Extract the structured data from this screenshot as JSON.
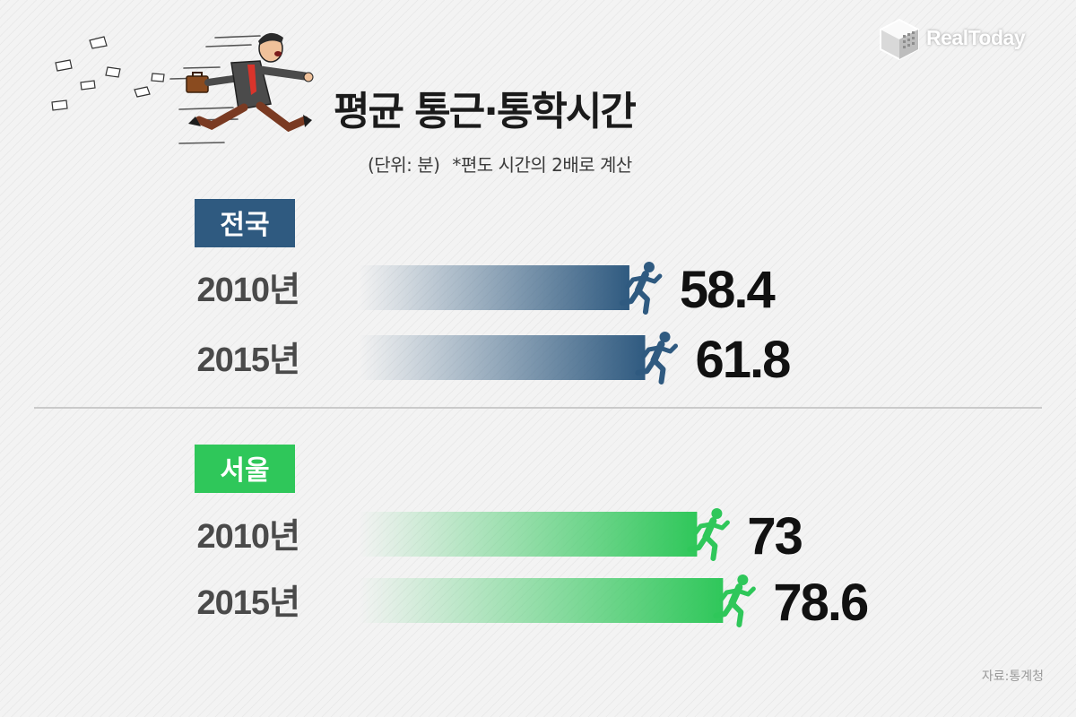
{
  "brand": {
    "name": "RealToday"
  },
  "header": {
    "title": "평균 통근·통학시간",
    "unit": "(단위: 분)",
    "note": "*편도 시간의 2배로 계산"
  },
  "source": "자료:통계청",
  "colors": {
    "national": "#2f5a80",
    "seoul": "#2fc75a",
    "label": "#4a4a4a",
    "value": "#111111"
  },
  "icons": {
    "runner": "running-person-icon",
    "businessman": "running-businessman-illustration",
    "logo": "realtoday-cube-logo"
  },
  "chart_data": [
    {
      "type": "bar",
      "orientation": "horizontal",
      "title": "전국",
      "categories": [
        "2010년",
        "2015년"
      ],
      "values": [
        58.4,
        61.8
      ],
      "value_labels": [
        "58.4",
        "61.8"
      ],
      "color": "#2f5a80"
    },
    {
      "type": "bar",
      "orientation": "horizontal",
      "title": "서울",
      "categories": [
        "2010년",
        "2015년"
      ],
      "values": [
        73,
        78.6
      ],
      "value_labels": [
        "73",
        "78.6"
      ],
      "color": "#2fc75a"
    }
  ]
}
